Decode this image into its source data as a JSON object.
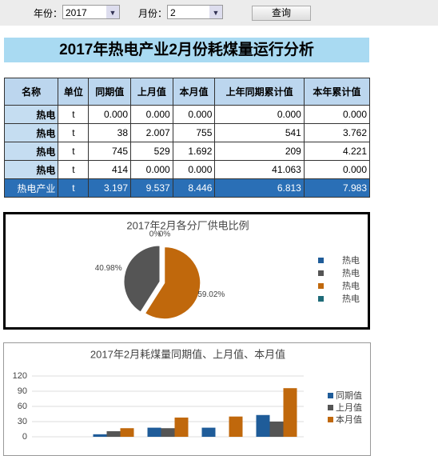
{
  "form": {
    "year_label": "年份：",
    "year": "2017",
    "month_label": "月份：",
    "month": "2",
    "button": "查询"
  },
  "header": {
    "title": "2017年热电产业2月份耗煤量运行分析"
  },
  "table": {
    "header": [
      "名称",
      "单位",
      "同期值",
      "上月值",
      "本月值",
      "上年同期累计值",
      "本年累计值"
    ],
    "rows": [
      [
        "热电",
        "t",
        "0.000",
        "0.000",
        "0.000",
        "0.000",
        "0.000"
      ],
      [
        "热电",
        "t",
        "38",
        "2.007",
        "755",
        "541",
        "3.762"
      ],
      [
        "热电",
        "t",
        "745",
        "529",
        "1.692",
        "209",
        "4.221"
      ],
      [
        "热电",
        "t",
        "414",
        "0.000",
        "0.000",
        "41.063",
        "0.000"
      ],
      [
        "热电产业",
        "t",
        "3.197",
        "9.537",
        "8.446",
        "6.813",
        "7.983"
      ]
    ]
  },
  "chart_data": [
    {
      "type": "pie",
      "title": "2017年2月各分厂供电比例",
      "categories": [
        "热电",
        "热电",
        "热电",
        "热电"
      ],
      "values": [
        0,
        40.98,
        59.02,
        0
      ],
      "value_labels": [
        "0%",
        "40.98%",
        "59.02%",
        "0%"
      ],
      "colors": [
        "#1f5c99",
        "#555555",
        "#c0680c",
        "#1e6b78"
      ],
      "legend": "right"
    },
    {
      "type": "bar",
      "title": "2017年2月耗煤量同期值、上月值、本月值",
      "categories": [
        null,
        null,
        null,
        null,
        null
      ],
      "series": [
        {
          "name": "同期值",
          "color": "#1f5c99",
          "values": [
            0,
            5,
            18,
            18,
            43
          ]
        },
        {
          "name": "上月值",
          "color": "#555555",
          "values": [
            0,
            11,
            17,
            0,
            30
          ]
        },
        {
          "name": "本月值",
          "color": "#c0680c",
          "values": [
            0,
            17,
            38,
            40,
            96
          ]
        }
      ],
      "ylim": [
        0,
        120
      ],
      "yticks": [
        0,
        30,
        60,
        90,
        120
      ],
      "grid": true,
      "legend": "right"
    }
  ]
}
